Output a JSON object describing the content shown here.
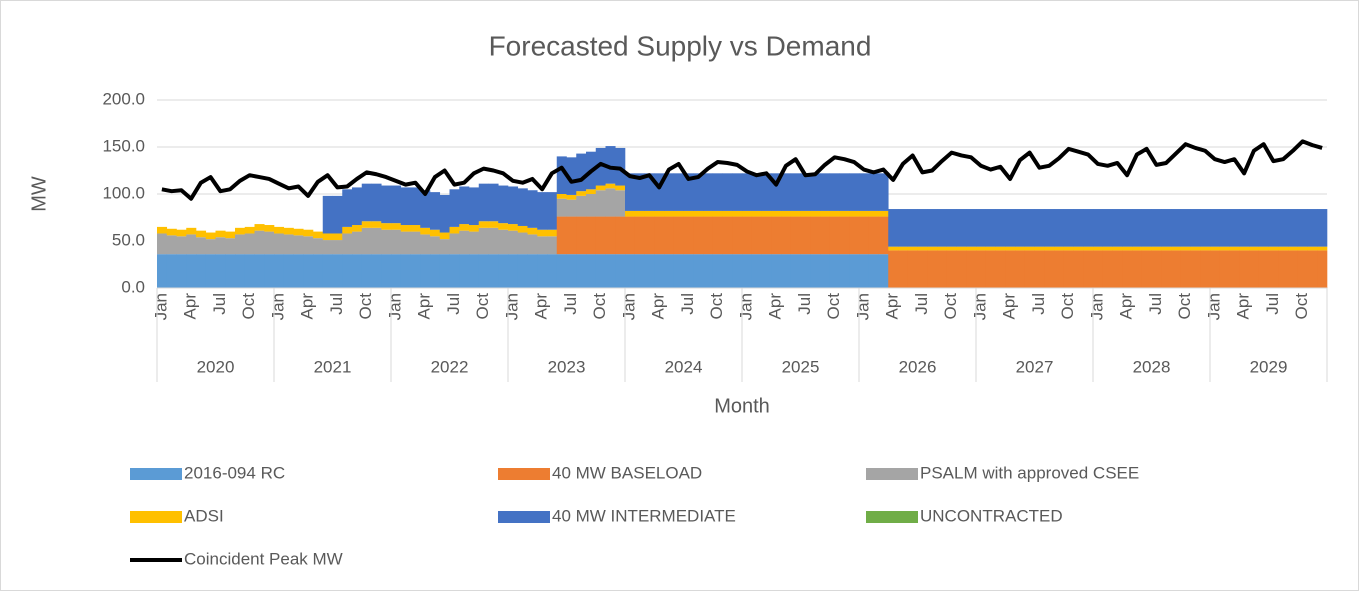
{
  "chart_data": {
    "type": "stacked_bar_line",
    "title": "Forecasted Supply vs Demand",
    "y_label": "MW",
    "x_label": "Month",
    "ylim": [
      0,
      200
    ],
    "yticks": [
      {
        "value": 0,
        "label": "0.0"
      },
      {
        "value": 50,
        "label": "50.0"
      },
      {
        "value": 100,
        "label": "100.0"
      },
      {
        "value": 150,
        "label": "150.0"
      },
      {
        "value": 200,
        "label": "200.0"
      }
    ],
    "grid": true,
    "categories": [
      "Jan",
      null,
      null,
      "Apr",
      null,
      null,
      "Jul",
      null,
      null,
      "Oct",
      null,
      null,
      "Jan",
      null,
      null,
      "Apr",
      null,
      null,
      "Jul",
      null,
      null,
      "Oct",
      null,
      null,
      "Jan",
      null,
      null,
      "Apr",
      null,
      null,
      "Jul",
      null,
      null,
      "Oct",
      null,
      null,
      "Jan",
      null,
      null,
      "Apr",
      null,
      null,
      "Jul",
      null,
      null,
      "Oct",
      null,
      null,
      "Jan",
      null,
      null,
      "Apr",
      null,
      null,
      "Jul",
      null,
      null,
      "Oct",
      null,
      null,
      "Jan",
      null,
      null,
      "Apr",
      null,
      null,
      "Jul",
      null,
      null,
      "Oct",
      null,
      null,
      "Jan",
      null,
      null,
      "Apr",
      null,
      null,
      "Jul",
      null,
      null,
      "Oct",
      null,
      null,
      "Jan",
      null,
      null,
      "Apr",
      null,
      null,
      "Jul",
      null,
      null,
      "Oct",
      null,
      null,
      "Jan",
      null,
      null,
      "Apr",
      null,
      null,
      "Jul",
      null,
      null,
      "Oct",
      null,
      null,
      "Jan",
      null,
      null,
      "Apr",
      null,
      null,
      "Jul",
      null,
      null,
      "Oct",
      null,
      null
    ],
    "groups": [
      "2020",
      "2021",
      "2022",
      "2023",
      "2024",
      "2025",
      "2026",
      "2027",
      "2028",
      "2029"
    ],
    "series": [
      {
        "name": "2016-094 RC",
        "color": "#5b9bd5",
        "kind": "bar",
        "values": [
          36,
          36,
          36,
          36,
          36,
          36,
          36,
          36,
          36,
          36,
          36,
          36,
          36,
          36,
          36,
          36,
          36,
          36,
          36,
          36,
          36,
          36,
          36,
          36,
          36,
          36,
          36,
          36,
          36,
          36,
          36,
          36,
          36,
          36,
          36,
          36,
          36,
          36,
          36,
          36,
          36,
          36,
          36,
          36,
          36,
          36,
          36,
          36,
          36,
          36,
          36,
          36,
          36,
          36,
          36,
          36,
          36,
          36,
          36,
          36,
          36,
          36,
          36,
          36,
          36,
          36,
          36,
          36,
          36,
          36,
          36,
          36,
          36,
          36,
          36,
          0,
          0,
          0,
          0,
          0,
          0,
          0,
          0,
          0,
          0,
          0,
          0,
          0,
          0,
          0,
          0,
          0,
          0,
          0,
          0,
          0,
          0,
          0,
          0,
          0,
          0,
          0,
          0,
          0,
          0,
          0,
          0,
          0,
          0,
          0,
          0,
          0,
          0,
          0,
          0,
          0,
          0,
          0,
          0,
          0
        ]
      },
      {
        "name": "40 MW BASELOAD",
        "color": "#ed7d31",
        "kind": "bar",
        "values": [
          0,
          0,
          0,
          0,
          0,
          0,
          0,
          0,
          0,
          0,
          0,
          0,
          0,
          0,
          0,
          0,
          0,
          0,
          0,
          0,
          0,
          0,
          0,
          0,
          0,
          0,
          0,
          0,
          0,
          0,
          0,
          0,
          0,
          0,
          0,
          0,
          0,
          0,
          0,
          0,
          0,
          40,
          40,
          40,
          40,
          40,
          40,
          40,
          40,
          40,
          40,
          40,
          40,
          40,
          40,
          40,
          40,
          40,
          40,
          40,
          40,
          40,
          40,
          40,
          40,
          40,
          40,
          40,
          40,
          40,
          40,
          40,
          40,
          40,
          40,
          40,
          40,
          40,
          40,
          40,
          40,
          40,
          40,
          40,
          40,
          40,
          40,
          40,
          40,
          40,
          40,
          40,
          40,
          40,
          40,
          40,
          40,
          40,
          40,
          40,
          40,
          40,
          40,
          40,
          40,
          40,
          40,
          40,
          40,
          40,
          40,
          40,
          40,
          40,
          40,
          40,
          40,
          40,
          40,
          40
        ]
      },
      {
        "name": "PSALM with approved CSEE",
        "color": "#a5a5a5",
        "kind": "bar",
        "values": [
          22,
          20,
          19,
          21,
          18,
          16,
          18,
          17,
          21,
          22,
          25,
          24,
          22,
          21,
          20,
          19,
          17,
          15,
          15,
          22,
          24,
          28,
          28,
          26,
          26,
          24,
          24,
          21,
          19,
          16,
          22,
          25,
          24,
          28,
          28,
          26,
          25,
          23,
          21,
          19,
          19,
          19,
          18,
          22,
          24,
          28,
          30,
          28,
          0,
          0,
          0,
          0,
          0,
          0,
          0,
          0,
          0,
          0,
          0,
          0,
          0,
          0,
          0,
          0,
          0,
          0,
          0,
          0,
          0,
          0,
          0,
          0,
          0,
          0,
          0,
          0,
          0,
          0,
          0,
          0,
          0,
          0,
          0,
          0,
          0,
          0,
          0,
          0,
          0,
          0,
          0,
          0,
          0,
          0,
          0,
          0,
          0,
          0,
          0,
          0,
          0,
          0,
          0,
          0,
          0,
          0,
          0,
          0,
          0,
          0,
          0,
          0,
          0,
          0,
          0,
          0,
          0,
          0,
          0,
          0
        ]
      },
      {
        "name": "ADSI",
        "color": "#ffc000",
        "kind": "bar",
        "values": [
          7,
          7,
          7,
          7,
          7,
          7,
          7,
          7,
          7,
          7,
          7,
          7,
          7,
          7,
          7,
          7,
          7,
          7,
          7,
          7,
          7,
          7,
          7,
          7,
          7,
          7,
          7,
          7,
          7,
          7,
          7,
          7,
          7,
          7,
          7,
          7,
          7,
          7,
          7,
          7,
          7,
          5,
          5,
          5,
          5,
          5,
          5,
          5,
          6,
          6,
          6,
          6,
          6,
          6,
          6,
          6,
          6,
          6,
          6,
          6,
          6,
          6,
          6,
          6,
          6,
          6,
          6,
          6,
          6,
          6,
          6,
          6,
          6,
          6,
          6,
          4,
          4,
          4,
          4,
          4,
          4,
          4,
          4,
          4,
          4,
          4,
          4,
          4,
          4,
          4,
          4,
          4,
          4,
          4,
          4,
          4,
          4,
          4,
          4,
          4,
          4,
          4,
          4,
          4,
          4,
          4,
          4,
          4,
          4,
          4,
          4,
          4,
          4,
          4,
          4,
          4,
          4,
          4,
          4,
          4
        ]
      },
      {
        "name": "40 MW INTERMEDIATE",
        "color": "#4472c4",
        "kind": "bar",
        "values": [
          0,
          0,
          0,
          0,
          0,
          0,
          0,
          0,
          0,
          0,
          0,
          0,
          0,
          0,
          0,
          0,
          0,
          40,
          40,
          40,
          40,
          40,
          40,
          40,
          40,
          40,
          40,
          40,
          40,
          40,
          40,
          40,
          40,
          40,
          40,
          40,
          40,
          40,
          40,
          40,
          40,
          40,
          40,
          40,
          40,
          40,
          40,
          40,
          40,
          40,
          40,
          40,
          40,
          40,
          40,
          40,
          40,
          40,
          40,
          40,
          40,
          40,
          40,
          40,
          40,
          40,
          40,
          40,
          40,
          40,
          40,
          40,
          40,
          40,
          40,
          40,
          40,
          40,
          40,
          40,
          40,
          40,
          40,
          40,
          40,
          40,
          40,
          40,
          40,
          40,
          40,
          40,
          40,
          40,
          40,
          40,
          40,
          40,
          40,
          40,
          40,
          40,
          40,
          40,
          40,
          40,
          40,
          40,
          40,
          40,
          40,
          40,
          40,
          40,
          40,
          40,
          40,
          40,
          40,
          40
        ]
      },
      {
        "name": "UNCONTRACTED",
        "color": "#70ad47",
        "kind": "bar",
        "values": [
          0,
          0,
          0,
          0,
          0,
          0,
          0,
          0,
          0,
          0,
          0,
          0,
          0,
          0,
          0,
          0,
          0,
          0,
          0,
          0,
          0,
          0,
          0,
          0,
          0,
          0,
          0,
          0,
          0,
          0,
          0,
          0,
          0,
          0,
          0,
          0,
          0,
          0,
          0,
          0,
          0,
          0,
          0,
          0,
          0,
          0,
          0,
          0,
          0,
          0,
          0,
          0,
          0,
          0,
          0,
          0,
          0,
          0,
          0,
          0,
          0,
          0,
          0,
          0,
          0,
          0,
          0,
          0,
          0,
          0,
          0,
          0,
          0,
          0,
          0,
          0,
          0,
          0,
          0,
          0,
          0,
          0,
          0,
          0,
          0,
          0,
          0,
          0,
          0,
          0,
          0,
          0,
          0,
          0,
          0,
          0,
          0,
          0,
          0,
          0,
          0,
          0,
          0,
          0,
          0,
          0,
          0,
          0,
          0,
          0,
          0,
          0,
          0,
          0,
          0,
          0,
          0,
          0,
          0,
          0
        ]
      },
      {
        "name": "Coincident Peak MW",
        "color": "#000000",
        "kind": "line",
        "values": [
          105,
          103,
          104,
          95,
          112,
          118,
          103,
          105,
          114,
          120,
          118,
          116,
          111,
          106,
          108,
          98,
          113,
          120,
          107,
          108,
          116,
          123,
          121,
          118,
          114,
          110,
          112,
          100,
          118,
          125,
          110,
          112,
          122,
          127,
          125,
          122,
          114,
          112,
          116,
          105,
          122,
          128,
          113,
          115,
          124,
          132,
          128,
          127,
          119,
          117,
          120,
          107,
          126,
          132,
          116,
          118,
          127,
          134,
          133,
          131,
          124,
          120,
          122,
          110,
          130,
          137,
          120,
          121,
          131,
          139,
          137,
          134,
          126,
          123,
          126,
          115,
          132,
          141,
          123,
          125,
          135,
          144,
          141,
          139,
          130,
          126,
          129,
          116,
          136,
          144,
          128,
          130,
          138,
          148,
          145,
          142,
          132,
          130,
          133,
          120,
          142,
          148,
          131,
          133,
          143,
          153,
          149,
          146,
          137,
          134,
          137,
          122,
          146,
          153,
          135,
          137,
          146,
          156,
          152,
          149
        ]
      }
    ]
  }
}
